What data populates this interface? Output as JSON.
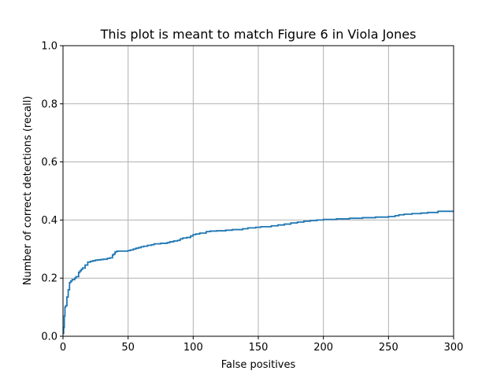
{
  "chart_data": {
    "type": "line",
    "title": "This plot is meant to match Figure 6 in Viola Jones",
    "xlabel": "False positives",
    "ylabel": "Number of correct detections (recall)",
    "xlim": [
      0,
      300
    ],
    "ylim": [
      0.0,
      1.0
    ],
    "xticks": [
      0,
      50,
      100,
      150,
      200,
      250,
      300
    ],
    "xtick_labels": [
      "0",
      "50",
      "100",
      "150",
      "200",
      "250",
      "300"
    ],
    "yticks": [
      0.0,
      0.2,
      0.4,
      0.6,
      0.8,
      1.0
    ],
    "ytick_labels": [
      "0.0",
      "0.2",
      "0.4",
      "0.6",
      "0.8",
      "1.0"
    ],
    "grid": true,
    "line_style": "step",
    "series_color": "#1f77b4",
    "series": [
      {
        "x": [
          0,
          0.5,
          1,
          1.5,
          2,
          3,
          4,
          5,
          6,
          7,
          9,
          10,
          12,
          13,
          14,
          15,
          17,
          19,
          21,
          23,
          25,
          27,
          29,
          31,
          34,
          36,
          38,
          39,
          40,
          41,
          42,
          45,
          50,
          52,
          54,
          56,
          58,
          60,
          62,
          65,
          68,
          70,
          75,
          80,
          82,
          85,
          88,
          90,
          92,
          95,
          98,
          100,
          102,
          105,
          110,
          113,
          118,
          125,
          130,
          138,
          142,
          148,
          152,
          160,
          165,
          170,
          175,
          180,
          185,
          190,
          195,
          200,
          210,
          220,
          230,
          240,
          250,
          255,
          258,
          262,
          268,
          275,
          280,
          288,
          300
        ],
        "y": [
          0.01,
          0.03,
          0.07,
          0.1,
          0.105,
          0.135,
          0.16,
          0.185,
          0.19,
          0.195,
          0.2,
          0.205,
          0.22,
          0.225,
          0.23,
          0.235,
          0.245,
          0.255,
          0.258,
          0.26,
          0.262,
          0.263,
          0.264,
          0.265,
          0.268,
          0.27,
          0.28,
          0.283,
          0.29,
          0.292,
          0.293,
          0.293,
          0.295,
          0.297,
          0.3,
          0.303,
          0.305,
          0.308,
          0.31,
          0.313,
          0.315,
          0.318,
          0.32,
          0.322,
          0.325,
          0.328,
          0.33,
          0.335,
          0.338,
          0.34,
          0.345,
          0.35,
          0.352,
          0.355,
          0.36,
          0.362,
          0.363,
          0.365,
          0.367,
          0.37,
          0.373,
          0.375,
          0.377,
          0.38,
          0.383,
          0.386,
          0.39,
          0.393,
          0.396,
          0.398,
          0.4,
          0.402,
          0.404,
          0.406,
          0.408,
          0.41,
          0.412,
          0.415,
          0.418,
          0.42,
          0.422,
          0.424,
          0.426,
          0.43,
          0.43
        ]
      }
    ]
  }
}
